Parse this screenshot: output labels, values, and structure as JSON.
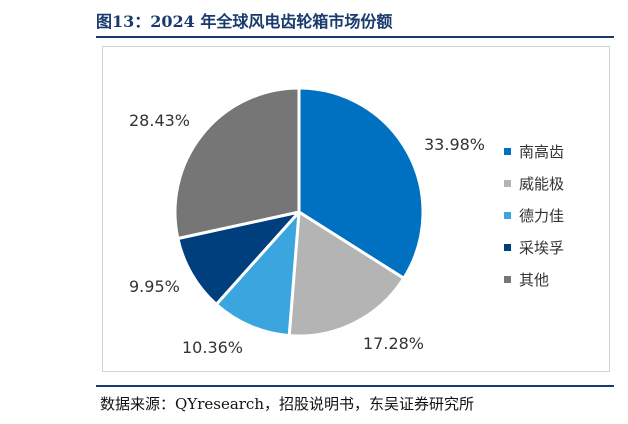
{
  "figure": {
    "title": "图13：2024 年全球风电齿轮箱市场份额",
    "source": "数据来源：QYresearch，招股说明书，东吴证券研究所"
  },
  "chart_data": {
    "type": "pie",
    "title": "",
    "start_angle_deg": 0,
    "direction": "clockwise",
    "legend_position": "right",
    "slices": [
      {
        "name": "南高齿",
        "value": 33.98,
        "label": "33.98%",
        "color": "#0070c0"
      },
      {
        "name": "威能极",
        "value": 17.28,
        "label": "17.28%",
        "color": "#b4b4b4"
      },
      {
        "name": "德力佳",
        "value": 10.36,
        "label": "10.36%",
        "color": "#3aa5de"
      },
      {
        "name": "采埃孚",
        "value": 9.95,
        "label": "9.95%",
        "color": "#003f7d"
      },
      {
        "name": "其他",
        "value": 28.43,
        "label": "28.43%",
        "color": "#767676"
      }
    ]
  }
}
